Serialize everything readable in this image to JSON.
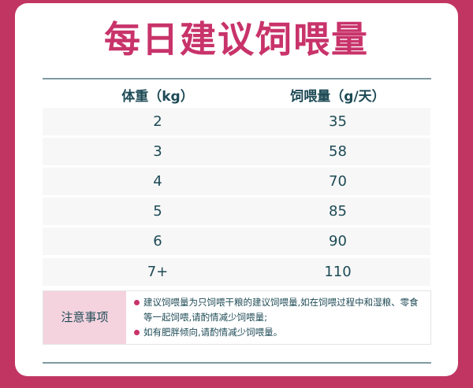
{
  "title": "每日建议饲喂量",
  "table": {
    "headers": [
      "体重（kg）",
      "饲喂量（g/天）"
    ],
    "rows": [
      [
        "2",
        "35"
      ],
      [
        "3",
        "58"
      ],
      [
        "4",
        "70"
      ],
      [
        "5",
        "85"
      ],
      [
        "6",
        "90"
      ],
      [
        "7+",
        "110"
      ]
    ]
  },
  "notes": {
    "label": "注意事项",
    "items": [
      "建议饲喂量为只饲喂干粮的建议饲喂量,如在饲喂过程中和湿粮、零食等一起饲喂,请酌情减少饲喂量;",
      "如有肥胖倾向,请酌情减少饲喂量。"
    ]
  },
  "colors": {
    "brand": "#c13562",
    "title": "#c8336a",
    "text": "#1d4a55",
    "note_label_bg": "#f4d3df"
  }
}
